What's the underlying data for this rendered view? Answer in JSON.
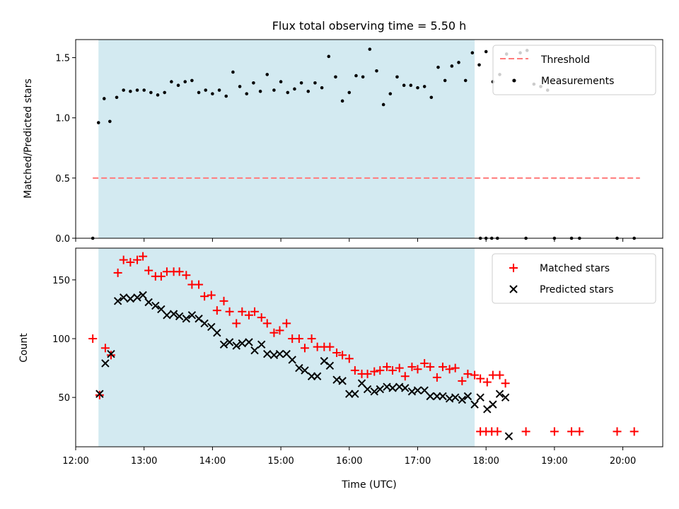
{
  "chart_data": [
    {
      "type": "scatter",
      "title": "Flux total observing time = 5.50 h",
      "xlabel": "",
      "ylabel": "Matched/Predicted stars",
      "ylim": [
        0,
        1.65
      ],
      "yticks": [
        "0.0",
        "0.5",
        "1.0",
        "1.5"
      ],
      "xlim": [
        "12:00",
        "20:35"
      ],
      "shaded_region": {
        "start": "12:20",
        "end": "17:50",
        "color": "#d3eaf1"
      },
      "legend_position": "top-right",
      "threshold": {
        "name": "Threshold",
        "value": 0.5,
        "x_start": "12:15",
        "x_end": "20:15",
        "color": "#ff7b7b"
      },
      "series": [
        {
          "name": "Measurements",
          "marker": "dot",
          "color": "#000000",
          "points": [
            [
              "12:15",
              0.0
            ],
            [
              "12:20",
              0.96
            ],
            [
              "12:25",
              1.16
            ],
            [
              "12:30",
              0.97
            ],
            [
              "12:36",
              1.17
            ],
            [
              "12:42",
              1.23
            ],
            [
              "12:48",
              1.22
            ],
            [
              "12:54",
              1.23
            ],
            [
              "13:00",
              1.23
            ],
            [
              "13:06",
              1.21
            ],
            [
              "13:12",
              1.19
            ],
            [
              "13:18",
              1.21
            ],
            [
              "13:24",
              1.3
            ],
            [
              "13:30",
              1.27
            ],
            [
              "13:36",
              1.3
            ],
            [
              "13:42",
              1.31
            ],
            [
              "13:48",
              1.21
            ],
            [
              "13:54",
              1.23
            ],
            [
              "14:00",
              1.2
            ],
            [
              "14:06",
              1.23
            ],
            [
              "14:12",
              1.18
            ],
            [
              "14:18",
              1.38
            ],
            [
              "14:24",
              1.26
            ],
            [
              "14:30",
              1.2
            ],
            [
              "14:36",
              1.29
            ],
            [
              "14:42",
              1.22
            ],
            [
              "14:48",
              1.36
            ],
            [
              "14:54",
              1.23
            ],
            [
              "15:00",
              1.3
            ],
            [
              "15:06",
              1.21
            ],
            [
              "15:12",
              1.24
            ],
            [
              "15:18",
              1.29
            ],
            [
              "15:24",
              1.22
            ],
            [
              "15:30",
              1.29
            ],
            [
              "15:36",
              1.25
            ],
            [
              "15:42",
              1.51
            ],
            [
              "15:48",
              1.34
            ],
            [
              "15:54",
              1.14
            ],
            [
              "16:00",
              1.21
            ],
            [
              "16:06",
              1.35
            ],
            [
              "16:12",
              1.34
            ],
            [
              "16:18",
              1.57
            ],
            [
              "16:24",
              1.39
            ],
            [
              "16:30",
              1.11
            ],
            [
              "16:36",
              1.2
            ],
            [
              "16:42",
              1.34
            ],
            [
              "16:48",
              1.27
            ],
            [
              "16:54",
              1.27
            ],
            [
              "17:00",
              1.25
            ],
            [
              "17:06",
              1.26
            ],
            [
              "17:12",
              1.17
            ],
            [
              "17:18",
              1.42
            ],
            [
              "17:24",
              1.31
            ],
            [
              "17:30",
              1.43
            ],
            [
              "17:36",
              1.46
            ],
            [
              "17:42",
              1.31
            ],
            [
              "17:48",
              1.54
            ],
            [
              "17:54",
              1.44
            ],
            [
              "18:00",
              1.55
            ],
            [
              "18:06",
              1.3
            ],
            [
              "18:12",
              1.36
            ],
            [
              "18:18",
              1.53
            ],
            [
              "18:24",
              1.31
            ],
            [
              "18:30",
              1.54
            ],
            [
              "18:36",
              1.56
            ],
            [
              "18:42",
              1.28
            ],
            [
              "18:48",
              1.26
            ],
            [
              "18:54",
              1.23
            ],
            [
              "17:55",
              0.0
            ],
            [
              "18:00",
              0.0
            ],
            [
              "18:05",
              0.0
            ],
            [
              "18:10",
              0.0
            ],
            [
              "18:35",
              0.0
            ],
            [
              "19:00",
              0.0
            ],
            [
              "19:15",
              0.0
            ],
            [
              "19:22",
              0.0
            ],
            [
              "19:55",
              0.0
            ],
            [
              "20:10",
              0.0
            ]
          ]
        }
      ]
    },
    {
      "type": "scatter",
      "title": "",
      "xlabel": "Time (UTC)",
      "ylabel": "Count",
      "ylim": [
        8,
        177
      ],
      "yticks": [
        "50",
        "100",
        "150"
      ],
      "xticks": [
        "12:00",
        "13:00",
        "14:00",
        "15:00",
        "16:00",
        "17:00",
        "18:00",
        "19:00",
        "20:00"
      ],
      "xlim": [
        "12:00",
        "20:35"
      ],
      "legend_position": "top-right",
      "series": [
        {
          "name": "Matched stars",
          "marker": "plus",
          "color": "#ff0000",
          "points": [
            [
              "12:15",
              100
            ],
            [
              "12:21",
              52
            ],
            [
              "12:26",
              92
            ],
            [
              "12:31",
              86
            ],
            [
              "12:37",
              156
            ],
            [
              "12:42",
              167
            ],
            [
              "12:48",
              165
            ],
            [
              "12:54",
              167
            ],
            [
              "12:59",
              170
            ],
            [
              "13:04",
              158
            ],
            [
              "13:10",
              153
            ],
            [
              "13:15",
              153
            ],
            [
              "13:20",
              157
            ],
            [
              "13:26",
              157
            ],
            [
              "13:31",
              157
            ],
            [
              "13:37",
              154
            ],
            [
              "13:42",
              146
            ],
            [
              "13:48",
              146
            ],
            [
              "13:53",
              136
            ],
            [
              "13:59",
              137
            ],
            [
              "14:04",
              124
            ],
            [
              "14:10",
              132
            ],
            [
              "14:15",
              123
            ],
            [
              "14:21",
              113
            ],
            [
              "14:26",
              123
            ],
            [
              "14:32",
              120
            ],
            [
              "14:37",
              123
            ],
            [
              "14:43",
              118
            ],
            [
              "14:48",
              113
            ],
            [
              "14:54",
              105
            ],
            [
              "14:59",
              107
            ],
            [
              "15:05",
              113
            ],
            [
              "15:10",
              100
            ],
            [
              "15:16",
              100
            ],
            [
              "15:21",
              92
            ],
            [
              "15:27",
              100
            ],
            [
              "15:32",
              93
            ],
            [
              "15:38",
              93
            ],
            [
              "15:43",
              93
            ],
            [
              "15:49",
              88
            ],
            [
              "15:54",
              86
            ],
            [
              "16:00",
              83
            ],
            [
              "16:05",
              73
            ],
            [
              "16:11",
              70
            ],
            [
              "16:16",
              70
            ],
            [
              "16:22",
              72
            ],
            [
              "16:27",
              73
            ],
            [
              "16:33",
              76
            ],
            [
              "16:38",
              73
            ],
            [
              "16:44",
              75
            ],
            [
              "16:49",
              68
            ],
            [
              "16:55",
              76
            ],
            [
              "17:00",
              74
            ],
            [
              "17:06",
              79
            ],
            [
              "17:11",
              76
            ],
            [
              "17:17",
              67
            ],
            [
              "17:22",
              76
            ],
            [
              "17:28",
              74
            ],
            [
              "17:33",
              75
            ],
            [
              "17:39",
              64
            ],
            [
              "17:44",
              70
            ],
            [
              "17:50",
              69
            ],
            [
              "17:55",
              66
            ],
            [
              "18:01",
              63
            ],
            [
              "18:06",
              69
            ],
            [
              "18:12",
              69
            ],
            [
              "18:17",
              62
            ],
            [
              "17:55",
              21
            ],
            [
              "18:00",
              21
            ],
            [
              "18:05",
              21
            ],
            [
              "18:10",
              21
            ],
            [
              "18:35",
              21
            ],
            [
              "19:00",
              21
            ],
            [
              "19:15",
              21
            ],
            [
              "19:22",
              21
            ],
            [
              "19:55",
              21
            ],
            [
              "20:10",
              21
            ]
          ]
        },
        {
          "name": "Predicted stars",
          "marker": "x",
          "color": "#000000",
          "points": [
            [
              "12:21",
              53
            ],
            [
              "12:26",
              79
            ],
            [
              "12:31",
              87
            ],
            [
              "12:37",
              132
            ],
            [
              "12:42",
              135
            ],
            [
              "12:48",
              134
            ],
            [
              "12:54",
              135
            ],
            [
              "12:59",
              137
            ],
            [
              "13:04",
              131
            ],
            [
              "13:10",
              128
            ],
            [
              "13:15",
              125
            ],
            [
              "13:20",
              120
            ],
            [
              "13:26",
              121
            ],
            [
              "13:31",
              119
            ],
            [
              "13:37",
              117
            ],
            [
              "13:42",
              120
            ],
            [
              "13:48",
              117
            ],
            [
              "13:53",
              113
            ],
            [
              "13:59",
              110
            ],
            [
              "14:04",
              105
            ],
            [
              "14:10",
              95
            ],
            [
              "14:15",
              97
            ],
            [
              "14:21",
              94
            ],
            [
              "14:26",
              96
            ],
            [
              "14:32",
              97
            ],
            [
              "14:37",
              90
            ],
            [
              "14:43",
              95
            ],
            [
              "14:48",
              87
            ],
            [
              "14:54",
              86
            ],
            [
              "14:59",
              87
            ],
            [
              "15:05",
              87
            ],
            [
              "15:10",
              82
            ],
            [
              "15:16",
              75
            ],
            [
              "15:21",
              73
            ],
            [
              "15:27",
              68
            ],
            [
              "15:32",
              68
            ],
            [
              "15:38",
              81
            ],
            [
              "15:43",
              77
            ],
            [
              "15:49",
              65
            ],
            [
              "15:54",
              64
            ],
            [
              "16:00",
              53
            ],
            [
              "16:05",
              53
            ],
            [
              "16:11",
              62
            ],
            [
              "16:16",
              57
            ],
            [
              "16:22",
              55
            ],
            [
              "16:27",
              57
            ],
            [
              "16:33",
              59
            ],
            [
              "16:38",
              58
            ],
            [
              "16:44",
              59
            ],
            [
              "16:49",
              58
            ],
            [
              "16:55",
              55
            ],
            [
              "17:00",
              56
            ],
            [
              "17:06",
              56
            ],
            [
              "17:11",
              51
            ],
            [
              "17:17",
              51
            ],
            [
              "17:22",
              51
            ],
            [
              "17:28",
              49
            ],
            [
              "17:33",
              50
            ],
            [
              "17:39",
              48
            ],
            [
              "17:44",
              51
            ],
            [
              "17:50",
              44
            ],
            [
              "17:55",
              50
            ],
            [
              "18:01",
              40
            ],
            [
              "18:06",
              44
            ],
            [
              "18:12",
              53
            ],
            [
              "18:17",
              50
            ],
            [
              "18:20",
              17
            ]
          ]
        }
      ]
    }
  ]
}
